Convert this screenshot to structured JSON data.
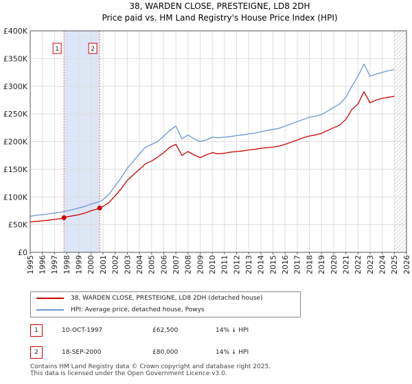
{
  "header": {
    "title_line1": "38, WARDEN CLOSE, PRESTEIGNE, LD8 2DH",
    "title_line2": "Price paid vs. HM Land Registry's House Price Index (HPI)"
  },
  "chart_data": {
    "type": "line",
    "title": "38, WARDEN CLOSE, PRESTEIGNE, LD8 2DH — Price paid vs. HM Land Registry's House Price Index (HPI)",
    "xlabel": "",
    "ylabel": "",
    "xlim": [
      1995,
      2026
    ],
    "ylim": [
      0,
      400000
    ],
    "x_ticks": [
      1995,
      1996,
      1997,
      1998,
      1999,
      2000,
      2001,
      2002,
      2003,
      2004,
      2005,
      2006,
      2007,
      2008,
      2009,
      2010,
      2011,
      2012,
      2013,
      2014,
      2015,
      2016,
      2017,
      2018,
      2019,
      2020,
      2021,
      2022,
      2023,
      2024,
      2025,
      2026
    ],
    "y_ticks": [
      {
        "value": 0,
        "label": "£0"
      },
      {
        "value": 50000,
        "label": "£50K"
      },
      {
        "value": 100000,
        "label": "£100K"
      },
      {
        "value": 150000,
        "label": "£150K"
      },
      {
        "value": 200000,
        "label": "£200K"
      },
      {
        "value": 250000,
        "label": "£250K"
      },
      {
        "value": 300000,
        "label": "£300K"
      },
      {
        "value": 350000,
        "label": "£350K"
      },
      {
        "value": 400000,
        "label": "£400K"
      }
    ],
    "grid": true,
    "shaded_span": {
      "from": 1997.78,
      "to": 2000.72,
      "color": "#dde6f7"
    },
    "hatch_from": 2025.0,
    "series": [
      {
        "name": "38, WARDEN CLOSE, PRESTEIGNE, LD8 2DH (detached house)",
        "color": "#cc0000",
        "x": [
          1995.0,
          1995.5,
          1996.0,
          1996.5,
          1997.0,
          1997.5,
          1997.78,
          1998.0,
          1998.5,
          1999.0,
          1999.5,
          2000.0,
          2000.5,
          2000.72,
          2001.0,
          2001.5,
          2002.0,
          2002.5,
          2003.0,
          2003.5,
          2004.0,
          2004.5,
          2005.0,
          2005.5,
          2006.0,
          2006.5,
          2007.0,
          2007.5,
          2008.0,
          2008.5,
          2009.0,
          2009.5,
          2010.0,
          2010.5,
          2011.0,
          2011.5,
          2012.0,
          2012.5,
          2013.0,
          2013.5,
          2014.0,
          2014.5,
          2015.0,
          2015.5,
          2016.0,
          2016.5,
          2017.0,
          2017.5,
          2018.0,
          2018.5,
          2019.0,
          2019.5,
          2020.0,
          2020.5,
          2021.0,
          2021.5,
          2022.0,
          2022.5,
          2023.0,
          2023.5,
          2024.0,
          2024.5,
          2025.0
        ],
        "y": [
          55000,
          56000,
          57000,
          58000,
          59500,
          61000,
          62500,
          64000,
          66000,
          68000,
          71000,
          75000,
          78000,
          80000,
          83000,
          90000,
          102000,
          115000,
          130000,
          140000,
          150000,
          160000,
          165000,
          172000,
          180000,
          190000,
          195000,
          175000,
          182000,
          176000,
          171000,
          176000,
          180000,
          178000,
          179000,
          181000,
          182000,
          183000,
          185000,
          186000,
          188000,
          189000,
          190000,
          192000,
          195000,
          199000,
          203000,
          207000,
          210000,
          212000,
          215000,
          220000,
          225000,
          230000,
          240000,
          258000,
          268000,
          290000,
          270000,
          275000,
          278000,
          280000,
          282000
        ]
      },
      {
        "name": "HPI: Average price, detached house, Powys",
        "color": "#6a96d6",
        "x": [
          1995.0,
          1995.5,
          1996.0,
          1996.5,
          1997.0,
          1997.5,
          1998.0,
          1998.5,
          1999.0,
          1999.5,
          2000.0,
          2000.5,
          2001.0,
          2001.5,
          2002.0,
          2002.5,
          2003.0,
          2003.5,
          2004.0,
          2004.5,
          2005.0,
          2005.5,
          2006.0,
          2006.5,
          2007.0,
          2007.5,
          2008.0,
          2008.5,
          2009.0,
          2009.5,
          2010.0,
          2010.5,
          2011.0,
          2011.5,
          2012.0,
          2012.5,
          2013.0,
          2013.5,
          2014.0,
          2014.5,
          2015.0,
          2015.5,
          2016.0,
          2016.5,
          2017.0,
          2017.5,
          2018.0,
          2018.5,
          2019.0,
          2019.5,
          2020.0,
          2020.5,
          2021.0,
          2021.5,
          2022.0,
          2022.5,
          2023.0,
          2023.5,
          2024.0,
          2024.5,
          2025.0
        ],
        "y": [
          65000,
          67000,
          68000,
          69500,
          71000,
          72500,
          74500,
          77000,
          80000,
          83000,
          87000,
          90000,
          95000,
          105000,
          120000,
          135000,
          152000,
          165000,
          178000,
          190000,
          195000,
          200000,
          210000,
          220000,
          228000,
          205000,
          212000,
          205000,
          200000,
          203000,
          208000,
          207000,
          208000,
          209000,
          211000,
          212000,
          214000,
          215000,
          218000,
          220000,
          222000,
          224000,
          228000,
          232000,
          236000,
          240000,
          244000,
          246000,
          249000,
          255000,
          262000,
          268000,
          280000,
          300000,
          318000,
          340000,
          318000,
          322000,
          325000,
          328000,
          330000
        ]
      }
    ],
    "sales": [
      {
        "marker": "1",
        "x": 1997.78,
        "y": 62500,
        "date": "10-OCT-1997",
        "price": "£62,500",
        "hpi": "14% ↓ HPI"
      },
      {
        "marker": "2",
        "x": 2000.72,
        "y": 80000,
        "date": "18-SEP-2000",
        "price": "£80,000",
        "hpi": "14% ↓ HPI"
      }
    ]
  },
  "legend": {
    "property_label": "38, WARDEN CLOSE, PRESTEIGNE, LD8 2DH (detached house)",
    "hpi_label": "HPI: Average price, detached house, Powys"
  },
  "footer": {
    "line1": "Contains HM Land Registry data © Crown copyright and database right 2025.",
    "line2": "This data is licensed under the Open Government Licence v3.0."
  }
}
